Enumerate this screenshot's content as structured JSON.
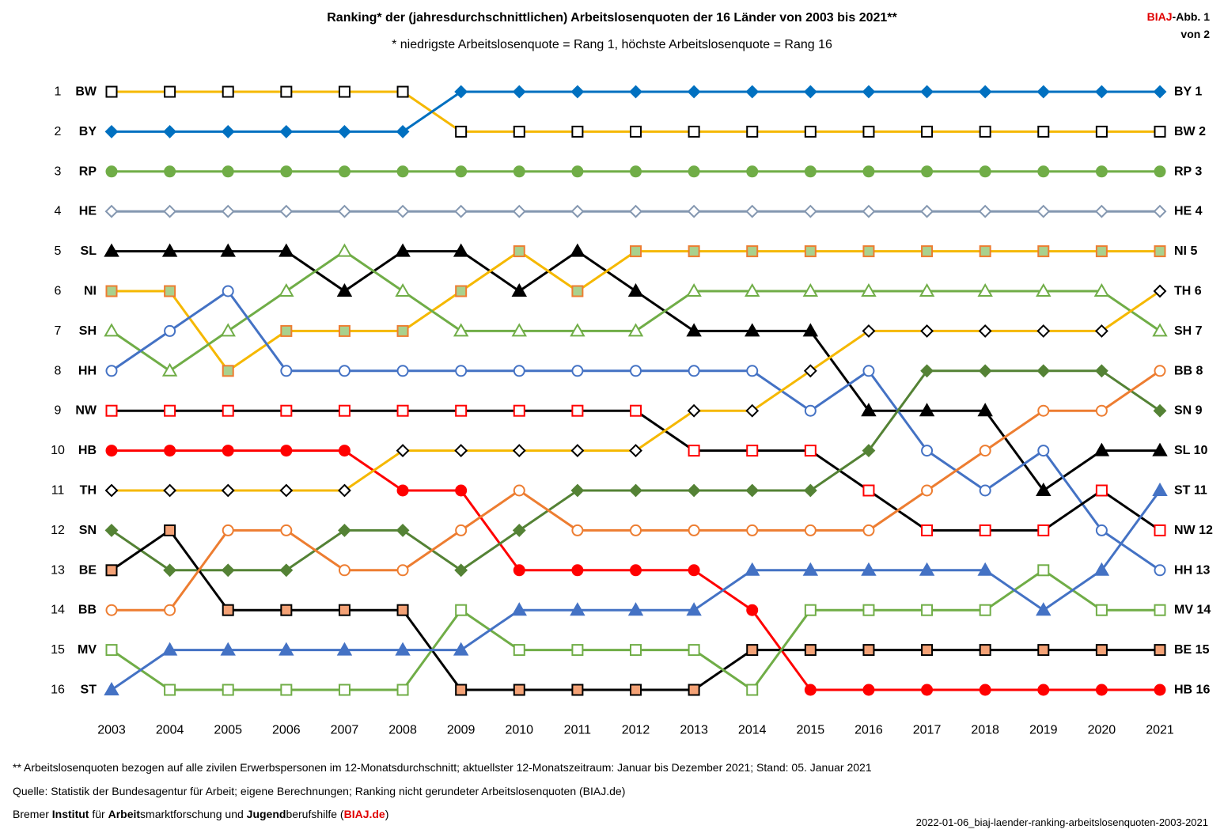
{
  "header": {
    "title": "Ranking* der (jahresdurchschnittlichen) Arbeitslosenquoten der 16 Länder von 2003 bis 2021**",
    "subtitle": "* niedrigste Arbeitslosenquote = Rang 1, höchste Arbeitslosenquote = Rang 16",
    "badge_brand": "BIAJ",
    "badge_rest": "-Abb. 1",
    "badge_line2": "von 2"
  },
  "footer": {
    "note": "** Arbeitslosenquoten bezogen auf alle zivilen Erwerbspersonen im 12-Monatsdurchschnitt; aktuellster 12-Monatszeitraum: Januar bis Dezember 2021; Stand: 05. Januar 2021",
    "source": "Quelle: Statistik der Bundesagentur für Arbeit; eigene Berechnungen; Ranking nicht gerundeter Arbeitslosenquoten (BIAJ.de)",
    "org_p1": "Bremer ",
    "org_b1": "Institut",
    "org_p2": " für ",
    "org_b2": "Arbeit",
    "org_p3": "smarktforschung und ",
    "org_b3": "Jugend",
    "org_p4": "berufshilfe (",
    "org_link": "BIAJ.de",
    "org_p5": ")",
    "file_id": "2022-01-06_biaj-laender-ranking-arbeitslosenquoten-2003-2021"
  },
  "chart_data": {
    "type": "line",
    "x": [
      2003,
      2004,
      2005,
      2006,
      2007,
      2008,
      2009,
      2010,
      2011,
      2012,
      2013,
      2014,
      2015,
      2016,
      2017,
      2018,
      2019,
      2020,
      2021
    ],
    "ranks": [
      1,
      2,
      3,
      4,
      5,
      6,
      7,
      8,
      9,
      10,
      11,
      12,
      13,
      14,
      15,
      16
    ],
    "ylim": [
      1,
      16
    ],
    "left_labels": [
      "BW",
      "BY",
      "RP",
      "HE",
      "SL",
      "NI",
      "SH",
      "HH",
      "NW",
      "HB",
      "TH",
      "SN",
      "BE",
      "BB",
      "MV",
      "ST"
    ],
    "right_labels": [
      "BY 1",
      "BW 2",
      "RP 3",
      "HE 4",
      "NI 5",
      "TH 6",
      "SH 7",
      "BB 8",
      "SN 9",
      "SL 10",
      "ST 11",
      "NW 12",
      "HH 13",
      "MV 14",
      "BE 15",
      "HB 16"
    ],
    "series": [
      {
        "name": "BW",
        "color": "#f5b800",
        "marker": "square",
        "fill": "#ffffff",
        "edge": "#000000",
        "values": [
          1,
          1,
          1,
          1,
          1,
          1,
          2,
          2,
          2,
          2,
          2,
          2,
          2,
          2,
          2,
          2,
          2,
          2,
          2
        ]
      },
      {
        "name": "BY",
        "color": "#0070c0",
        "marker": "diamond",
        "fill": "#0070c0",
        "edge": "#0070c0",
        "values": [
          2,
          2,
          2,
          2,
          2,
          2,
          1,
          1,
          1,
          1,
          1,
          1,
          1,
          1,
          1,
          1,
          1,
          1,
          1
        ]
      },
      {
        "name": "RP",
        "color": "#70ad47",
        "marker": "circle",
        "fill": "#70ad47",
        "edge": "#70ad47",
        "values": [
          3,
          3,
          3,
          3,
          3,
          3,
          3,
          3,
          3,
          3,
          3,
          3,
          3,
          3,
          3,
          3,
          3,
          3,
          3
        ]
      },
      {
        "name": "HE",
        "color": "#8497b0",
        "marker": "diamond",
        "fill": "#ffffff",
        "edge": "#8497b0",
        "values": [
          4,
          4,
          4,
          4,
          4,
          4,
          4,
          4,
          4,
          4,
          4,
          4,
          4,
          4,
          4,
          4,
          4,
          4,
          4
        ]
      },
      {
        "name": "SL",
        "color": "#000000",
        "marker": "triangle",
        "fill": "#000000",
        "edge": "#000000",
        "values": [
          5,
          5,
          5,
          5,
          6,
          5,
          5,
          6,
          5,
          6,
          7,
          7,
          7,
          9,
          9,
          9,
          11,
          10,
          10
        ]
      },
      {
        "name": "NI",
        "color": "#f5b800",
        "marker": "square",
        "fill": "#a9d18e",
        "edge": "#ed7d31",
        "values": [
          6,
          6,
          8,
          7,
          7,
          7,
          6,
          5,
          6,
          5,
          5,
          5,
          5,
          5,
          5,
          5,
          5,
          5,
          5
        ]
      },
      {
        "name": "SH",
        "color": "#70ad47",
        "marker": "triangle",
        "fill": "#ffffff",
        "edge": "#70ad47",
        "values": [
          7,
          8,
          7,
          6,
          5,
          6,
          7,
          7,
          7,
          7,
          6,
          6,
          6,
          6,
          6,
          6,
          6,
          6,
          7
        ]
      },
      {
        "name": "HH",
        "color": "#4472c4",
        "marker": "circle",
        "fill": "#ffffff",
        "edge": "#4472c4",
        "values": [
          8,
          7,
          6,
          8,
          8,
          8,
          8,
          8,
          8,
          8,
          8,
          8,
          9,
          8,
          10,
          11,
          10,
          12,
          13
        ]
      },
      {
        "name": "NW",
        "color": "#000000",
        "marker": "square",
        "fill": "#ffffff",
        "edge": "#ff0000",
        "values": [
          9,
          9,
          9,
          9,
          9,
          9,
          9,
          9,
          9,
          9,
          10,
          10,
          10,
          11,
          12,
          12,
          12,
          11,
          12
        ]
      },
      {
        "name": "HB",
        "color": "#ff0000",
        "marker": "circle",
        "fill": "#ff0000",
        "edge": "#ff0000",
        "values": [
          10,
          10,
          10,
          10,
          10,
          11,
          11,
          13,
          13,
          13,
          13,
          14,
          16,
          16,
          16,
          16,
          16,
          16,
          16
        ]
      },
      {
        "name": "TH",
        "color": "#f5b800",
        "marker": "diamond",
        "fill": "#ffffff",
        "edge": "#000000",
        "values": [
          11,
          11,
          11,
          11,
          11,
          10,
          10,
          10,
          10,
          10,
          9,
          9,
          8,
          7,
          7,
          7,
          7,
          7,
          6
        ]
      },
      {
        "name": "SN",
        "color": "#548235",
        "marker": "diamond",
        "fill": "#548235",
        "edge": "#548235",
        "values": [
          12,
          13,
          13,
          13,
          12,
          12,
          13,
          12,
          11,
          11,
          11,
          11,
          11,
          10,
          8,
          8,
          8,
          8,
          9
        ]
      },
      {
        "name": "BE",
        "color": "#000000",
        "marker": "square",
        "fill": "#f4a276",
        "edge": "#000000",
        "values": [
          13,
          12,
          14,
          14,
          14,
          14,
          16,
          16,
          16,
          16,
          16,
          15,
          15,
          15,
          15,
          15,
          15,
          15,
          15
        ]
      },
      {
        "name": "BB",
        "color": "#ed7d31",
        "marker": "circle",
        "fill": "#ffffff",
        "edge": "#ed7d31",
        "values": [
          14,
          14,
          12,
          12,
          13,
          13,
          12,
          11,
          12,
          12,
          12,
          12,
          12,
          12,
          11,
          10,
          9,
          9,
          8
        ]
      },
      {
        "name": "MV",
        "color": "#70ad47",
        "marker": "square",
        "fill": "#ffffff",
        "edge": "#70ad47",
        "values": [
          15,
          16,
          16,
          16,
          16,
          16,
          14,
          15,
          15,
          15,
          15,
          16,
          14,
          14,
          14,
          14,
          13,
          14,
          14
        ]
      },
      {
        "name": "ST",
        "color": "#4472c4",
        "marker": "triangle",
        "fill": "#4472c4",
        "edge": "#4472c4",
        "values": [
          16,
          15,
          15,
          15,
          15,
          15,
          15,
          14,
          14,
          14,
          14,
          13,
          13,
          13,
          13,
          13,
          14,
          13,
          11
        ]
      }
    ]
  }
}
